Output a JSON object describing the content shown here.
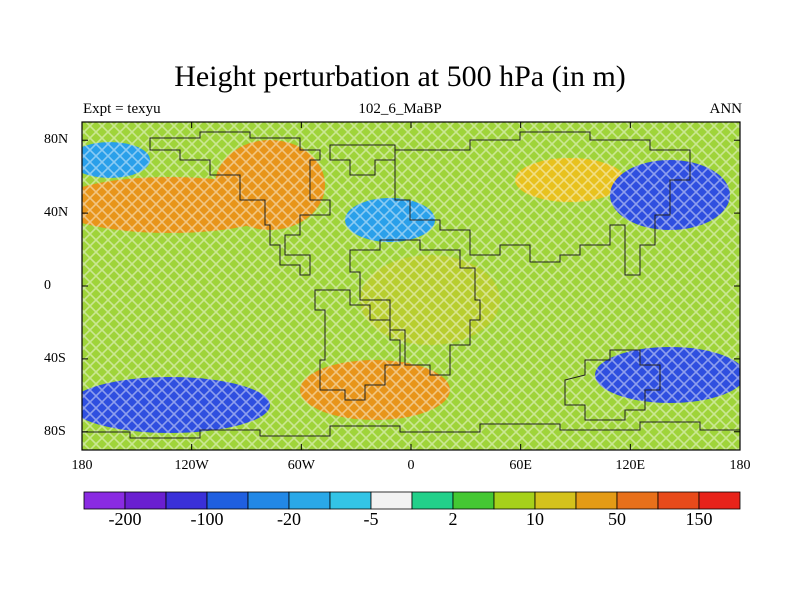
{
  "title": "Height perturbation at 500 hPa (in m)",
  "subtitle_left": "Expt = texyu",
  "subtitle_center": "102_6_MaBP",
  "subtitle_right": "ANN",
  "map": {
    "lat_ticks": [
      {
        "value": 80,
        "label": "80N"
      },
      {
        "value": 40,
        "label": "40N"
      },
      {
        "value": 0,
        "label": "0"
      },
      {
        "value": -40,
        "label": "40S"
      },
      {
        "value": -80,
        "label": "80S"
      }
    ],
    "lon_ticks": [
      {
        "value": -180,
        "label": "180"
      },
      {
        "value": -120,
        "label": "120W"
      },
      {
        "value": -60,
        "label": "60W"
      },
      {
        "value": 0,
        "label": "0"
      },
      {
        "value": 60,
        "label": "60E"
      },
      {
        "value": 120,
        "label": "120E"
      },
      {
        "value": 180,
        "label": "180"
      }
    ],
    "lat_range": [
      -90,
      90
    ],
    "lon_range": [
      -180,
      180
    ]
  },
  "colorbar": {
    "colors": [
      "#8a2be2",
      "#6a1fd0",
      "#3a30d8",
      "#1f5fe0",
      "#2288e6",
      "#2aa8e8",
      "#33c4e6",
      "#f2f2f2",
      "#22d08a",
      "#44c833",
      "#a6d11a",
      "#d4c21c",
      "#e49b16",
      "#e8701a",
      "#e84a1a",
      "#e8231a"
    ],
    "labels": [
      {
        "boundary": 1,
        "text": "-200"
      },
      {
        "boundary": 3,
        "text": "-100"
      },
      {
        "boundary": 5,
        "text": "-20"
      },
      {
        "boundary": 7,
        "text": "-5"
      },
      {
        "boundary": 9,
        "text": "2"
      },
      {
        "boundary": 11,
        "text": "10"
      },
      {
        "boundary": 13,
        "text": "50"
      },
      {
        "boundary": 15,
        "text": "150"
      }
    ]
  },
  "field_palette": {
    "low2": "#2f4fe0",
    "low1": "#2aa0ea",
    "mid": "#9fd43a",
    "high1": "#e8c21e",
    "high2": "#e8951a"
  }
}
